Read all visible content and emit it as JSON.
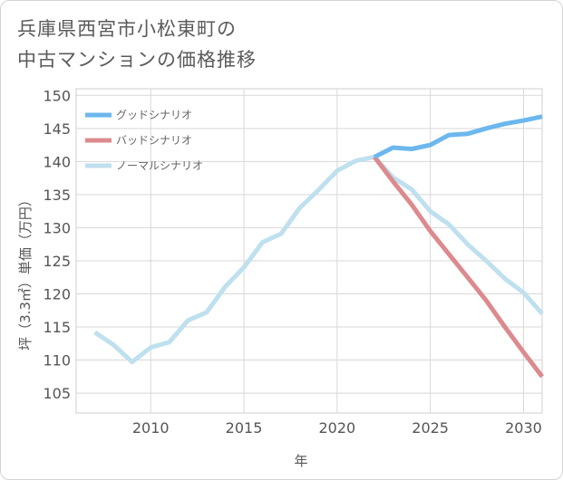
{
  "title": {
    "line1": "兵庫県西宮市小松東町の",
    "line2": "中古マンションの価格推移"
  },
  "chart_data": {
    "type": "line",
    "title": "兵庫県西宮市小松東町の中古マンションの価格推移",
    "xlabel": "年",
    "ylabel": "坪（3.3㎡）単価（万円）",
    "xlim": [
      2006,
      2031
    ],
    "ylim": [
      102,
      151
    ],
    "xticks": [
      2010,
      2015,
      2020,
      2025,
      2030
    ],
    "yticks": [
      105,
      110,
      115,
      120,
      125,
      130,
      135,
      140,
      145,
      150
    ],
    "grid": true,
    "legend_position": "top-left",
    "series": [
      {
        "name": "グッドシナリオ",
        "color": "#6cb7ee",
        "x": [
          2022,
          2023,
          2024,
          2025,
          2026,
          2027,
          2028,
          2029,
          2030,
          2031
        ],
        "values": [
          140.7,
          142.1,
          141.9,
          142.5,
          144.0,
          144.2,
          145.0,
          145.7,
          146.2,
          146.8
        ]
      },
      {
        "name": "バッドシナリオ",
        "color": "#dc8a8e",
        "x": [
          2022,
          2023,
          2024,
          2025,
          2026,
          2027,
          2028,
          2029,
          2030,
          2031
        ],
        "values": [
          140.7,
          137.0,
          133.5,
          129.5,
          126.0,
          122.5,
          119.0,
          115.0,
          111.2,
          107.5
        ]
      },
      {
        "name": "ノーマルシナリオ",
        "color": "#bfe0ee",
        "x": [
          2007,
          2008,
          2009,
          2010,
          2011,
          2012,
          2013,
          2014,
          2015,
          2016,
          2017,
          2018,
          2019,
          2020,
          2021,
          2022,
          2023,
          2024,
          2025,
          2026,
          2027,
          2028,
          2029,
          2030,
          2031
        ],
        "values": [
          114.2,
          112.3,
          109.7,
          111.9,
          112.7,
          116.0,
          117.2,
          121.1,
          124.0,
          127.8,
          129.1,
          133.0,
          135.7,
          138.6,
          140.1,
          140.7,
          137.6,
          135.8,
          132.5,
          130.5,
          127.5,
          125.0,
          122.3,
          120.2,
          117.0
        ]
      }
    ]
  }
}
